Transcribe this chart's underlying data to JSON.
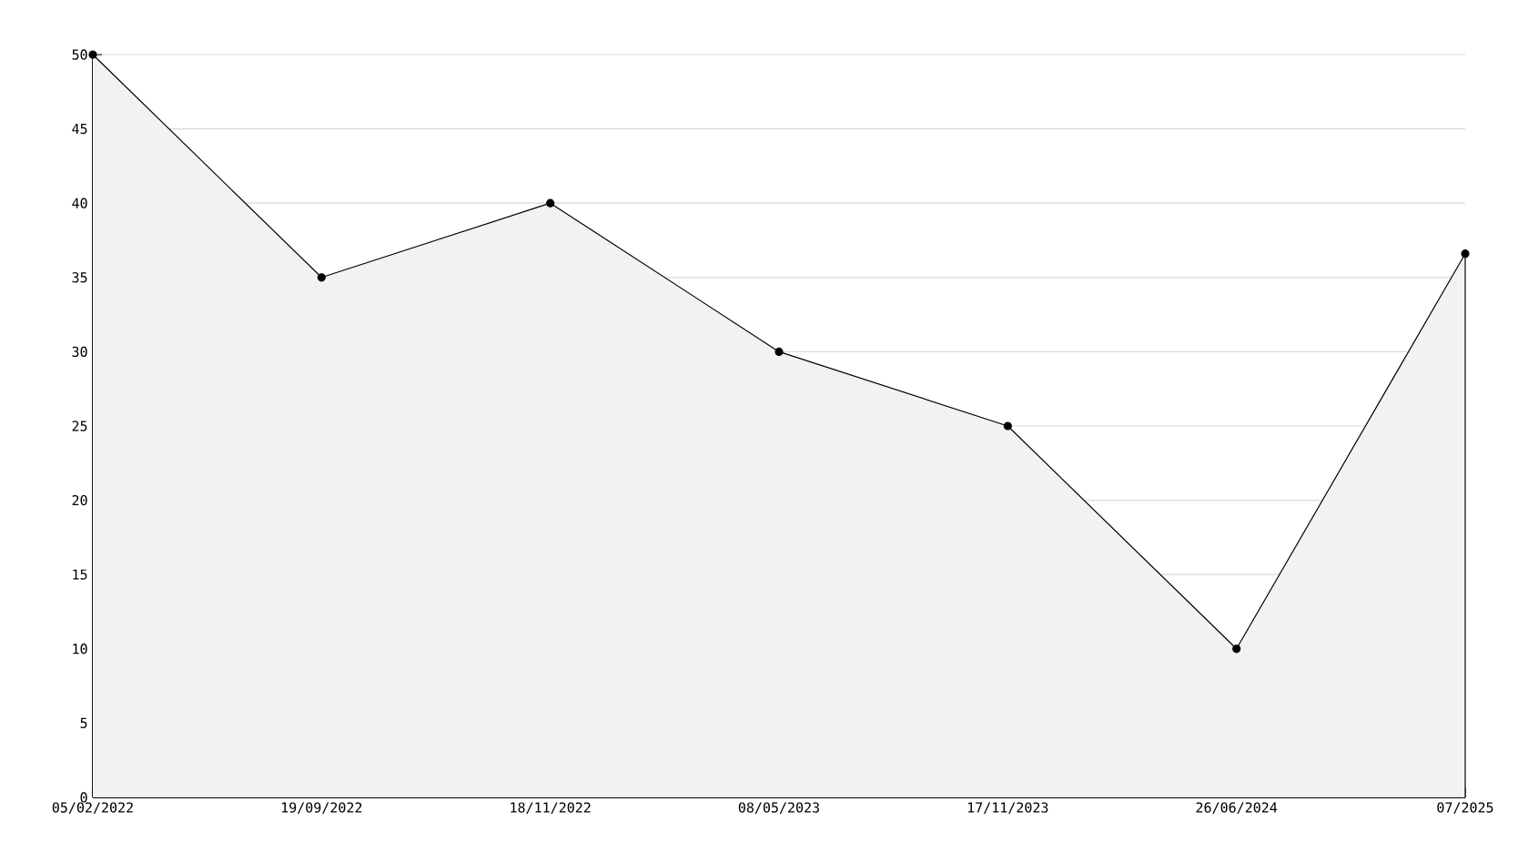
{
  "chart_data": {
    "type": "area",
    "categories": [
      "05/02/2022",
      "19/09/2022",
      "18/11/2022",
      "08/05/2023",
      "17/11/2023",
      "26/06/2024",
      "07/2025"
    ],
    "series": [
      {
        "color": "#000000",
        "values": [
          50,
          35,
          40,
          30,
          25,
          10,
          36.6
        ]
      }
    ],
    "ylim": [
      0,
      50
    ],
    "yticks": [
      0,
      5,
      10,
      15,
      20,
      25,
      30,
      35,
      40,
      45,
      50
    ],
    "grid": "y",
    "marker": "circle"
  }
}
